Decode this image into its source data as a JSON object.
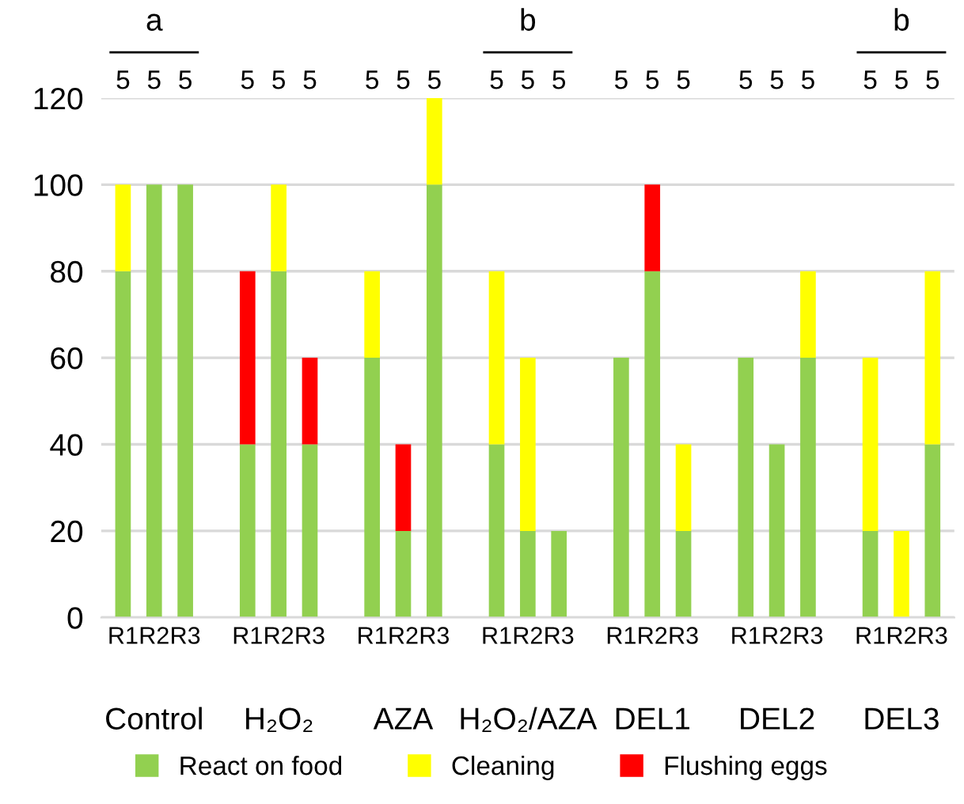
{
  "chart_data": {
    "type": "bar",
    "stacked": true,
    "categories": [
      "R1",
      "R2",
      "R3",
      null,
      "R1",
      "R2",
      "R3",
      null,
      "R1",
      "R2",
      "R3",
      null,
      "R1",
      "R2",
      "R3",
      null,
      "R1",
      "R2",
      "R3",
      null,
      "R1",
      "R2",
      "R3",
      null,
      "R1",
      "R2",
      "R3"
    ],
    "series": [
      {
        "name": "React on food",
        "color": "#92d050",
        "values": [
          80,
          100,
          100,
          null,
          40,
          80,
          40,
          null,
          60,
          20,
          100,
          null,
          40,
          20,
          20,
          null,
          60,
          80,
          20,
          null,
          60,
          40,
          60,
          null,
          20,
          null,
          40
        ]
      },
      {
        "name": "Cleaning",
        "color": "#ffff00",
        "values": [
          20,
          null,
          null,
          null,
          null,
          20,
          null,
          null,
          20,
          null,
          20,
          null,
          40,
          40,
          null,
          null,
          null,
          null,
          20,
          null,
          null,
          null,
          20,
          null,
          40,
          20,
          40
        ]
      },
      {
        "name": "Flushing eggs",
        "color": "#ff0000",
        "values": [
          null,
          null,
          null,
          null,
          40,
          null,
          20,
          null,
          null,
          20,
          null,
          null,
          null,
          null,
          null,
          null,
          null,
          20,
          null,
          null,
          null,
          null,
          null,
          null,
          null,
          null,
          null
        ]
      }
    ],
    "ylim": [
      0,
      120
    ],
    "yticks": [
      0,
      20,
      40,
      60,
      80,
      100,
      120
    ],
    "grid": "y",
    "legend": "bottom",
    "annotations": [
      "Control",
      "H₂O₂",
      "AZA",
      "H₂O₂/AZA",
      "DEL1",
      "DEL2",
      "DEL3",
      "5",
      "5",
      "5",
      "5",
      "5",
      "5",
      "5",
      "5",
      "5",
      "5",
      "5",
      "5",
      "5",
      "5",
      "5",
      "5",
      "5",
      "5",
      "5",
      "5",
      "5",
      "a",
      "b",
      "b"
    ]
  }
}
